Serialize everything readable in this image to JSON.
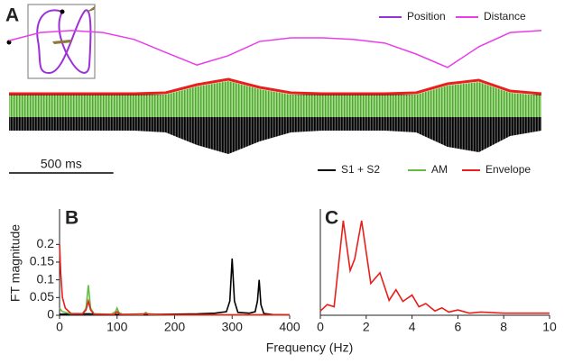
{
  "chart_data": [
    {
      "type": "trace",
      "panel_label": "A",
      "inset": {
        "name": "Position",
        "color": "#9b30d9"
      },
      "scale_bar": {
        "label": "500 ms",
        "value": 500
      },
      "x": [
        0,
        150,
        300,
        450,
        600,
        750,
        900,
        1050,
        1200,
        1350,
        1500,
        1650,
        1800,
        1950,
        2100,
        2250,
        2400,
        2550
      ],
      "distance": {
        "name": "Distance",
        "color": "#e83ee8",
        "values": [
          0.73,
          0.93,
          0.98,
          0.93,
          0.76,
          0.44,
          0.13,
          0.36,
          0.71,
          0.8,
          0.8,
          0.76,
          0.67,
          0.4,
          0.07,
          0.58,
          0.93,
          0.98
        ]
      },
      "series": [
        {
          "name": "S1 + S2",
          "color": "#000000",
          "values": [
            1.0,
            1.0,
            1.0,
            1.0,
            1.0,
            1.1,
            1.8,
            2.3,
            1.6,
            1.1,
            1.0,
            1.0,
            1.0,
            1.1,
            1.9,
            2.2,
            1.3,
            1.0
          ]
        },
        {
          "name": "AM",
          "color": "#66bb44",
          "values": [
            0.95,
            0.95,
            0.95,
            0.95,
            0.95,
            1.0,
            1.45,
            1.75,
            1.3,
            1.0,
            0.95,
            0.95,
            0.95,
            1.0,
            1.5,
            1.7,
            1.1,
            0.95
          ]
        },
        {
          "name": "Envelope",
          "color": "#e8201c",
          "values": [
            1.05,
            1.05,
            1.05,
            1.05,
            1.05,
            1.1,
            1.55,
            1.85,
            1.4,
            1.1,
            1.05,
            1.05,
            1.05,
            1.1,
            1.6,
            1.8,
            1.2,
            1.05
          ]
        }
      ]
    },
    {
      "type": "line",
      "panel_label": "B",
      "ylabel": "FT magnitude",
      "xlabel": "Frequency (Hz)",
      "xlim": [
        0,
        400
      ],
      "xticks": [
        0,
        100,
        200,
        300,
        400
      ],
      "ylim": [
        0,
        0.3
      ],
      "yticks": [
        0,
        0.05,
        0.1,
        0.15,
        0.2
      ],
      "series": [
        {
          "color": "#000000",
          "x": [
            0,
            50,
            100,
            150,
            200,
            240,
            270,
            290,
            296,
            300,
            304,
            310,
            330,
            340,
            344,
            347,
            350,
            355,
            370,
            400
          ],
          "values": [
            0.003,
            0.004,
            0.002,
            0.002,
            0.003,
            0.004,
            0.006,
            0.01,
            0.04,
            0.16,
            0.04,
            0.008,
            0.006,
            0.01,
            0.04,
            0.1,
            0.03,
            0.005,
            0.002,
            0.001
          ]
        },
        {
          "color": "#66bb44",
          "x": [
            0,
            5,
            20,
            40,
            46,
            50,
            54,
            60,
            90,
            97,
            100,
            103,
            110,
            145,
            150,
            155,
            200,
            300,
            400
          ],
          "values": [
            0.02,
            0.01,
            0.004,
            0.005,
            0.02,
            0.085,
            0.02,
            0.004,
            0.003,
            0.01,
            0.02,
            0.008,
            0.002,
            0.002,
            0.008,
            0.002,
            0.001,
            0.001,
            0.001
          ]
        },
        {
          "color": "#e8201c",
          "x": [
            0,
            2,
            5,
            10,
            20,
            40,
            46,
            50,
            54,
            60,
            95,
            100,
            105,
            150,
            200,
            400
          ],
          "values": [
            0.2,
            0.12,
            0.05,
            0.02,
            0.005,
            0.004,
            0.015,
            0.04,
            0.015,
            0.003,
            0.002,
            0.01,
            0.002,
            0.004,
            0.001,
            0.001
          ]
        }
      ]
    },
    {
      "type": "line",
      "panel_label": "C",
      "xlim": [
        0,
        10
      ],
      "xticks": [
        0,
        2,
        4,
        6,
        8,
        10
      ],
      "ylim": [
        0,
        1
      ],
      "series": [
        {
          "color": "#e8201c",
          "x": [
            0,
            0.3,
            0.6,
            1,
            1.3,
            1.5,
            1.8,
            2.2,
            2.6,
            3,
            3.3,
            3.6,
            4,
            4.3,
            4.6,
            5,
            5.3,
            5.6,
            6,
            6.5,
            7,
            8,
            9,
            10
          ],
          "values": [
            0.04,
            0.1,
            0.08,
            0.89,
            0.42,
            0.53,
            0.89,
            0.3,
            0.4,
            0.14,
            0.24,
            0.13,
            0.19,
            0.08,
            0.11,
            0.04,
            0.07,
            0.03,
            0.05,
            0.02,
            0.03,
            0.02,
            0.02,
            0.02
          ]
        }
      ]
    }
  ]
}
